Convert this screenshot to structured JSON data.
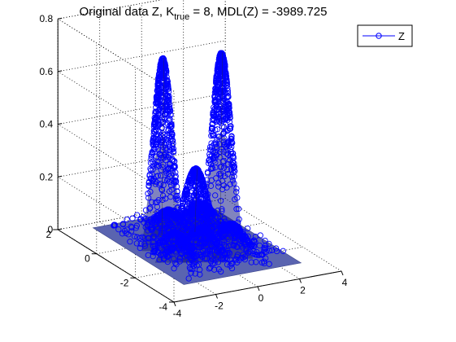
{
  "chart_data": {
    "type": "scatter",
    "view": "3d",
    "title": {
      "prefix": "Original data Z, K",
      "subscript": "true",
      "suffix": " = 8, MDL(Z) = -3989.725"
    },
    "xlabel": "",
    "ylabel": "",
    "zlabel": "",
    "xlim": [
      -4,
      4
    ],
    "ylim": [
      -4,
      2
    ],
    "zlim": [
      0,
      0.8
    ],
    "x_ticks": [
      "-4",
      "-2",
      "0",
      "2",
      "4"
    ],
    "y_ticks": [
      "-4",
      "-2",
      "0",
      "2"
    ],
    "z_ticks": [
      "0",
      "0.2",
      "0.4",
      "0.6",
      "0.8"
    ],
    "grid": true,
    "legend": {
      "position": "top-right",
      "entries": [
        "Z"
      ]
    },
    "series": [
      {
        "name": "Z",
        "marker": "o",
        "line": "-",
        "color": "#0000ff",
        "peaks": [
          {
            "x": -1.2,
            "y": -0.4,
            "z": 0.72
          },
          {
            "x": 1.6,
            "y": -0.4,
            "z": 0.7
          },
          {
            "x": 0.2,
            "y": -0.6,
            "z": 0.29
          },
          {
            "x": -0.4,
            "y": -1.6,
            "z": 0.12
          },
          {
            "x": 0.9,
            "y": -1.7,
            "z": 0.12
          },
          {
            "x": -1.4,
            "y": -1.3,
            "z": 0.1
          },
          {
            "x": 1.3,
            "y": 0.3,
            "z": 0.1
          },
          {
            "x": -0.1,
            "y": 0.4,
            "z": 0.09
          }
        ]
      }
    ]
  }
}
